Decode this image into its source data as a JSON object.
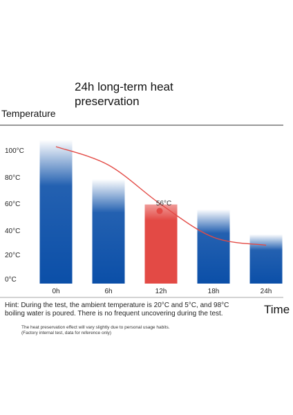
{
  "chart_data": {
    "type": "bar",
    "title": "24h long-term heat preservation",
    "ylabel": "Temperature",
    "xlabel": "Time",
    "categories": [
      "0h",
      "6h",
      "12h",
      "18h",
      "24h"
    ],
    "values": [
      100,
      70,
      56,
      47,
      28
    ],
    "yticks": [
      "100°C",
      "80°C",
      "60°C",
      "40°C",
      "20°C",
      "0°C"
    ],
    "ylim": [
      0,
      100
    ],
    "highlight_category": "12h",
    "highlight_label": "56°C",
    "trend_line": [
      {
        "x": "0h",
        "y": 100
      },
      {
        "x": "6h",
        "y": 86
      },
      {
        "x": "12h",
        "y": 56
      },
      {
        "x": "18h",
        "y": 31
      },
      {
        "x": "24h",
        "y": 25
      }
    ],
    "colors": {
      "bar": "#0b4fa8",
      "highlight_bar": "#e34a45",
      "trend": "#e34a45",
      "axis_line": "#333333"
    }
  },
  "hint": "Hint: During the test, the ambient temperature is 20°C and 5°C, and 98°C boiling water is poured. There is no frequent uncovering during the test.",
  "note": "The heat preservation effect will vary slightly due to personal usage habits. (Factory internal test, data for reference only)"
}
